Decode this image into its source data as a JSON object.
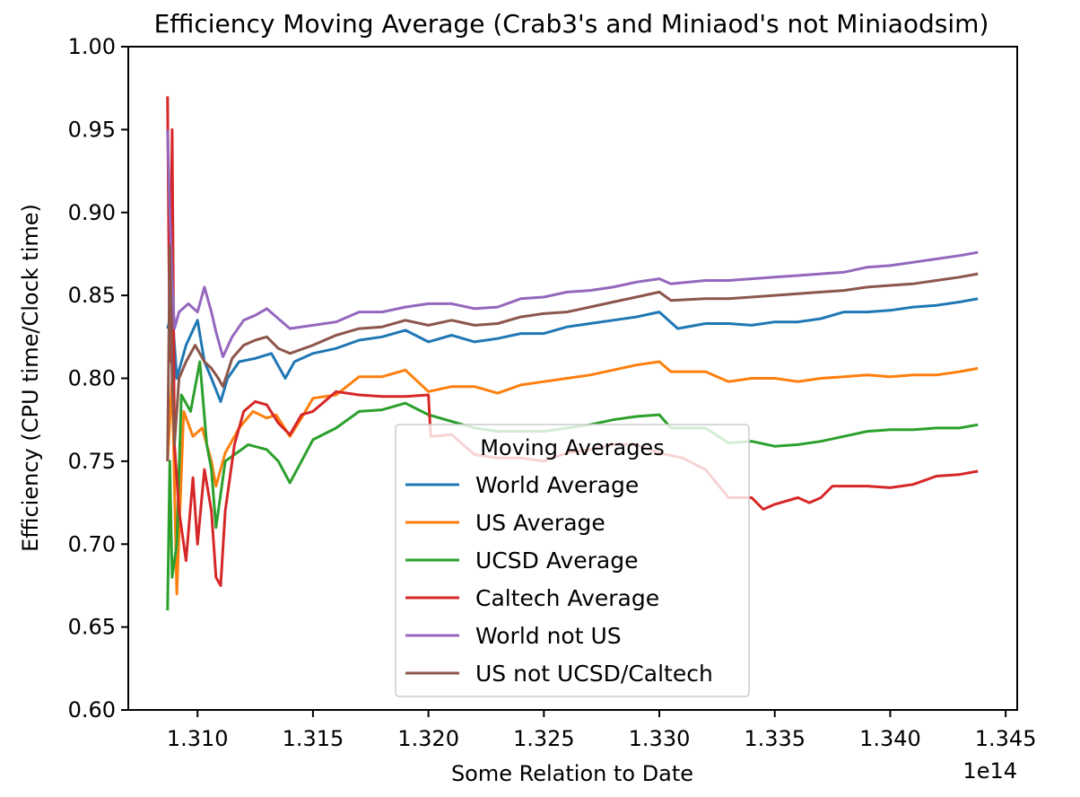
{
  "chart_data": {
    "type": "line",
    "title": "Efficiency Moving Average (Crab3's and Miniaod's not Miniaodsim)",
    "xlabel": "Some Relation to Date",
    "ylabel": "Efficiency (CPU time/Clock time)",
    "x_offset_label": "1e14",
    "xlim": [
      1.307,
      1.3455
    ],
    "ylim": [
      0.6,
      1.0
    ],
    "xticks": [
      1.31,
      1.315,
      1.32,
      1.325,
      1.33,
      1.335,
      1.34,
      1.345
    ],
    "xtick_labels": [
      "1.310",
      "1.315",
      "1.320",
      "1.325",
      "1.330",
      "1.335",
      "1.340",
      "1.345"
    ],
    "yticks": [
      0.6,
      0.65,
      0.7,
      0.75,
      0.8,
      0.85,
      0.9,
      0.95,
      1.0
    ],
    "ytick_labels": [
      "0.60",
      "0.65",
      "0.70",
      "0.75",
      "0.80",
      "0.85",
      "0.90",
      "0.95",
      "1.00"
    ],
    "grid": false,
    "legend": {
      "title": "Moving Averages",
      "placement": "lower-center"
    },
    "series": [
      {
        "name": "World Average",
        "color": "#1f77b4",
        "points": [
          [
            1.3087,
            0.83
          ],
          [
            1.3089,
            0.84
          ],
          [
            1.3091,
            0.8
          ],
          [
            1.3095,
            0.82
          ],
          [
            1.31,
            0.835
          ],
          [
            1.3103,
            0.81
          ],
          [
            1.3106,
            0.8
          ],
          [
            1.311,
            0.786
          ],
          [
            1.3113,
            0.8
          ],
          [
            1.3118,
            0.81
          ],
          [
            1.3125,
            0.812
          ],
          [
            1.3132,
            0.815
          ],
          [
            1.3138,
            0.8
          ],
          [
            1.3142,
            0.81
          ],
          [
            1.315,
            0.815
          ],
          [
            1.316,
            0.818
          ],
          [
            1.317,
            0.823
          ],
          [
            1.318,
            0.825
          ],
          [
            1.319,
            0.829
          ],
          [
            1.32,
            0.822
          ],
          [
            1.321,
            0.826
          ],
          [
            1.322,
            0.822
          ],
          [
            1.323,
            0.824
          ],
          [
            1.324,
            0.827
          ],
          [
            1.325,
            0.827
          ],
          [
            1.326,
            0.831
          ],
          [
            1.327,
            0.833
          ],
          [
            1.328,
            0.835
          ],
          [
            1.329,
            0.837
          ],
          [
            1.33,
            0.84
          ],
          [
            1.3308,
            0.83
          ],
          [
            1.332,
            0.833
          ],
          [
            1.333,
            0.833
          ],
          [
            1.334,
            0.832
          ],
          [
            1.335,
            0.834
          ],
          [
            1.336,
            0.834
          ],
          [
            1.337,
            0.836
          ],
          [
            1.338,
            0.84
          ],
          [
            1.339,
            0.84
          ],
          [
            1.34,
            0.841
          ],
          [
            1.341,
            0.843
          ],
          [
            1.342,
            0.844
          ],
          [
            1.343,
            0.846
          ],
          [
            1.3438,
            0.848
          ]
        ]
      },
      {
        "name": "US Average",
        "color": "#ff7f0e",
        "points": [
          [
            1.3087,
            0.75
          ],
          [
            1.3089,
            0.8
          ],
          [
            1.3091,
            0.67
          ],
          [
            1.3094,
            0.78
          ],
          [
            1.3098,
            0.765
          ],
          [
            1.3102,
            0.77
          ],
          [
            1.3106,
            0.75
          ],
          [
            1.3108,
            0.735
          ],
          [
            1.3112,
            0.755
          ],
          [
            1.3118,
            0.77
          ],
          [
            1.3124,
            0.78
          ],
          [
            1.313,
            0.776
          ],
          [
            1.3134,
            0.778
          ],
          [
            1.314,
            0.765
          ],
          [
            1.3145,
            0.776
          ],
          [
            1.315,
            0.788
          ],
          [
            1.316,
            0.79
          ],
          [
            1.317,
            0.801
          ],
          [
            1.318,
            0.801
          ],
          [
            1.319,
            0.805
          ],
          [
            1.32,
            0.792
          ],
          [
            1.321,
            0.795
          ],
          [
            1.322,
            0.795
          ],
          [
            1.323,
            0.791
          ],
          [
            1.324,
            0.796
          ],
          [
            1.325,
            0.798
          ],
          [
            1.326,
            0.8
          ],
          [
            1.327,
            0.802
          ],
          [
            1.328,
            0.805
          ],
          [
            1.329,
            0.808
          ],
          [
            1.33,
            0.81
          ],
          [
            1.3305,
            0.804
          ],
          [
            1.332,
            0.804
          ],
          [
            1.333,
            0.798
          ],
          [
            1.334,
            0.8
          ],
          [
            1.335,
            0.8
          ],
          [
            1.336,
            0.798
          ],
          [
            1.337,
            0.8
          ],
          [
            1.338,
            0.801
          ],
          [
            1.339,
            0.802
          ],
          [
            1.34,
            0.801
          ],
          [
            1.341,
            0.802
          ],
          [
            1.342,
            0.802
          ],
          [
            1.343,
            0.804
          ],
          [
            1.3438,
            0.806
          ]
        ]
      },
      {
        "name": "UCSD Average",
        "color": "#2ca02c",
        "points": [
          [
            1.3087,
            0.66
          ],
          [
            1.3088,
            0.75
          ],
          [
            1.3089,
            0.68
          ],
          [
            1.3091,
            0.7
          ],
          [
            1.3093,
            0.79
          ],
          [
            1.3097,
            0.78
          ],
          [
            1.3101,
            0.81
          ],
          [
            1.3104,
            0.76
          ],
          [
            1.3106,
            0.745
          ],
          [
            1.3108,
            0.71
          ],
          [
            1.3112,
            0.75
          ],
          [
            1.3117,
            0.755
          ],
          [
            1.3122,
            0.76
          ],
          [
            1.313,
            0.757
          ],
          [
            1.3135,
            0.75
          ],
          [
            1.314,
            0.737
          ],
          [
            1.3145,
            0.75
          ],
          [
            1.315,
            0.763
          ],
          [
            1.316,
            0.77
          ],
          [
            1.317,
            0.78
          ],
          [
            1.318,
            0.781
          ],
          [
            1.319,
            0.785
          ],
          [
            1.32,
            0.778
          ],
          [
            1.321,
            0.774
          ],
          [
            1.322,
            0.77
          ],
          [
            1.323,
            0.768
          ],
          [
            1.324,
            0.768
          ],
          [
            1.325,
            0.768
          ],
          [
            1.326,
            0.77
          ],
          [
            1.327,
            0.772
          ],
          [
            1.328,
            0.775
          ],
          [
            1.329,
            0.777
          ],
          [
            1.33,
            0.778
          ],
          [
            1.3305,
            0.77
          ],
          [
            1.332,
            0.77
          ],
          [
            1.333,
            0.761
          ],
          [
            1.334,
            0.762
          ],
          [
            1.335,
            0.759
          ],
          [
            1.336,
            0.76
          ],
          [
            1.337,
            0.762
          ],
          [
            1.338,
            0.765
          ],
          [
            1.339,
            0.768
          ],
          [
            1.34,
            0.769
          ],
          [
            1.341,
            0.769
          ],
          [
            1.342,
            0.77
          ],
          [
            1.343,
            0.77
          ],
          [
            1.3438,
            0.772
          ]
        ]
      },
      {
        "name": "Caltech Average",
        "color": "#d62728",
        "points": [
          [
            1.3087,
            0.97
          ],
          [
            1.3088,
            0.81
          ],
          [
            1.3089,
            0.95
          ],
          [
            1.309,
            0.76
          ],
          [
            1.3092,
            0.72
          ],
          [
            1.3095,
            0.69
          ],
          [
            1.3098,
            0.74
          ],
          [
            1.31,
            0.7
          ],
          [
            1.3103,
            0.745
          ],
          [
            1.3106,
            0.72
          ],
          [
            1.3108,
            0.68
          ],
          [
            1.311,
            0.675
          ],
          [
            1.3112,
            0.72
          ],
          [
            1.3116,
            0.76
          ],
          [
            1.312,
            0.78
          ],
          [
            1.3125,
            0.786
          ],
          [
            1.313,
            0.784
          ],
          [
            1.3135,
            0.773
          ],
          [
            1.314,
            0.766
          ],
          [
            1.3145,
            0.778
          ],
          [
            1.315,
            0.78
          ],
          [
            1.316,
            0.792
          ],
          [
            1.317,
            0.79
          ],
          [
            1.318,
            0.789
          ],
          [
            1.319,
            0.789
          ],
          [
            1.32,
            0.79
          ],
          [
            1.3201,
            0.765
          ],
          [
            1.321,
            0.766
          ],
          [
            1.322,
            0.754
          ],
          [
            1.323,
            0.752
          ],
          [
            1.324,
            0.752
          ],
          [
            1.325,
            0.75
          ],
          [
            1.326,
            0.755
          ],
          [
            1.327,
            0.757
          ],
          [
            1.328,
            0.76
          ],
          [
            1.329,
            0.76
          ],
          [
            1.33,
            0.755
          ],
          [
            1.331,
            0.752
          ],
          [
            1.332,
            0.745
          ],
          [
            1.333,
            0.728
          ],
          [
            1.334,
            0.728
          ],
          [
            1.3345,
            0.721
          ],
          [
            1.335,
            0.724
          ],
          [
            1.336,
            0.728
          ],
          [
            1.3365,
            0.725
          ],
          [
            1.337,
            0.728
          ],
          [
            1.3375,
            0.735
          ],
          [
            1.339,
            0.735
          ],
          [
            1.34,
            0.734
          ],
          [
            1.341,
            0.736
          ],
          [
            1.342,
            0.741
          ],
          [
            1.343,
            0.742
          ],
          [
            1.3438,
            0.744
          ]
        ]
      },
      {
        "name": "World not US",
        "color": "#9467bd",
        "points": [
          [
            1.3087,
            0.95
          ],
          [
            1.3088,
            0.9
          ],
          [
            1.3089,
            0.86
          ],
          [
            1.309,
            0.83
          ],
          [
            1.3092,
            0.84
          ],
          [
            1.3096,
            0.845
          ],
          [
            1.31,
            0.84
          ],
          [
            1.3103,
            0.855
          ],
          [
            1.3106,
            0.84
          ],
          [
            1.3108,
            0.828
          ],
          [
            1.3111,
            0.813
          ],
          [
            1.3115,
            0.825
          ],
          [
            1.312,
            0.835
          ],
          [
            1.3125,
            0.838
          ],
          [
            1.313,
            0.842
          ],
          [
            1.3135,
            0.836
          ],
          [
            1.314,
            0.83
          ],
          [
            1.315,
            0.832
          ],
          [
            1.316,
            0.834
          ],
          [
            1.317,
            0.84
          ],
          [
            1.318,
            0.84
          ],
          [
            1.319,
            0.843
          ],
          [
            1.32,
            0.845
          ],
          [
            1.321,
            0.845
          ],
          [
            1.322,
            0.842
          ],
          [
            1.323,
            0.843
          ],
          [
            1.324,
            0.848
          ],
          [
            1.325,
            0.849
          ],
          [
            1.326,
            0.852
          ],
          [
            1.327,
            0.853
          ],
          [
            1.328,
            0.855
          ],
          [
            1.329,
            0.858
          ],
          [
            1.33,
            0.86
          ],
          [
            1.3305,
            0.857
          ],
          [
            1.332,
            0.859
          ],
          [
            1.333,
            0.859
          ],
          [
            1.334,
            0.86
          ],
          [
            1.335,
            0.861
          ],
          [
            1.336,
            0.862
          ],
          [
            1.337,
            0.863
          ],
          [
            1.338,
            0.864
          ],
          [
            1.339,
            0.867
          ],
          [
            1.34,
            0.868
          ],
          [
            1.341,
            0.87
          ],
          [
            1.342,
            0.872
          ],
          [
            1.343,
            0.874
          ],
          [
            1.3438,
            0.876
          ]
        ]
      },
      {
        "name": "US not UCSD/Caltech",
        "color": "#8c564b",
        "points": [
          [
            1.3087,
            0.75
          ],
          [
            1.3088,
            0.88
          ],
          [
            1.3089,
            0.8
          ],
          [
            1.309,
            0.76
          ],
          [
            1.3092,
            0.8
          ],
          [
            1.3095,
            0.81
          ],
          [
            1.3099,
            0.82
          ],
          [
            1.3103,
            0.81
          ],
          [
            1.3106,
            0.806
          ],
          [
            1.3109,
            0.8
          ],
          [
            1.3111,
            0.795
          ],
          [
            1.3115,
            0.812
          ],
          [
            1.312,
            0.82
          ],
          [
            1.3125,
            0.823
          ],
          [
            1.313,
            0.825
          ],
          [
            1.3135,
            0.818
          ],
          [
            1.314,
            0.815
          ],
          [
            1.315,
            0.82
          ],
          [
            1.316,
            0.826
          ],
          [
            1.317,
            0.83
          ],
          [
            1.318,
            0.831
          ],
          [
            1.319,
            0.835
          ],
          [
            1.32,
            0.832
          ],
          [
            1.321,
            0.835
          ],
          [
            1.322,
            0.832
          ],
          [
            1.323,
            0.833
          ],
          [
            1.324,
            0.837
          ],
          [
            1.325,
            0.839
          ],
          [
            1.326,
            0.84
          ],
          [
            1.327,
            0.843
          ],
          [
            1.328,
            0.846
          ],
          [
            1.329,
            0.849
          ],
          [
            1.33,
            0.852
          ],
          [
            1.3305,
            0.847
          ],
          [
            1.332,
            0.848
          ],
          [
            1.333,
            0.848
          ],
          [
            1.334,
            0.849
          ],
          [
            1.335,
            0.85
          ],
          [
            1.336,
            0.851
          ],
          [
            1.337,
            0.852
          ],
          [
            1.338,
            0.853
          ],
          [
            1.339,
            0.855
          ],
          [
            1.34,
            0.856
          ],
          [
            1.341,
            0.857
          ],
          [
            1.342,
            0.859
          ],
          [
            1.343,
            0.861
          ],
          [
            1.3438,
            0.863
          ]
        ]
      }
    ]
  }
}
